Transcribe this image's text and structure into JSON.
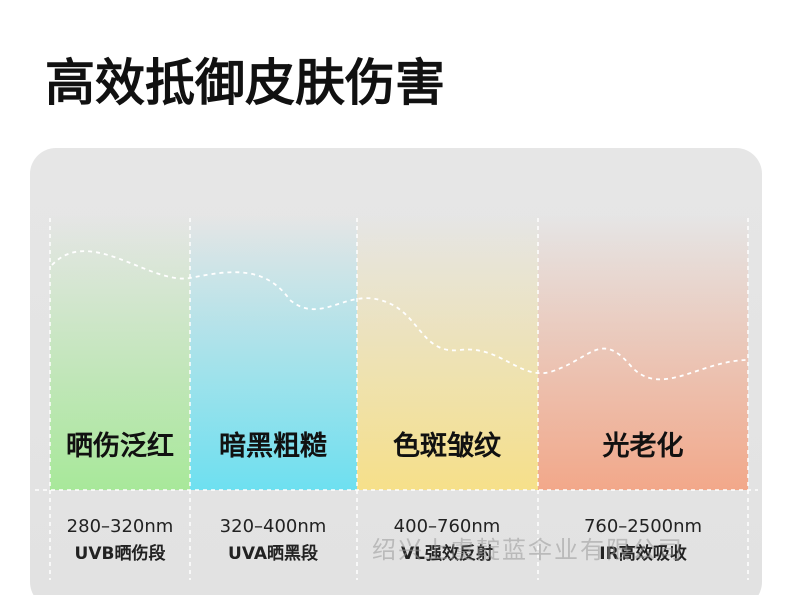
{
  "header": {
    "title": "高效抵御皮肤伤害"
  },
  "columns": [
    {
      "label": "晒伤泛红",
      "range": "280–320nm",
      "band": "UVB晒伤段"
    },
    {
      "label": "暗黑粗糙",
      "range": "320–400nm",
      "band": "UVA晒黑段"
    },
    {
      "label": "色斑皱纹",
      "range": "400–760nm",
      "band": "VL强效反射"
    },
    {
      "label": "光老化",
      "range": "760–2500nm",
      "band": "IR高效吸收"
    }
  ],
  "watermark": "绍兴上虞靛蓝伞业有限公司"
}
